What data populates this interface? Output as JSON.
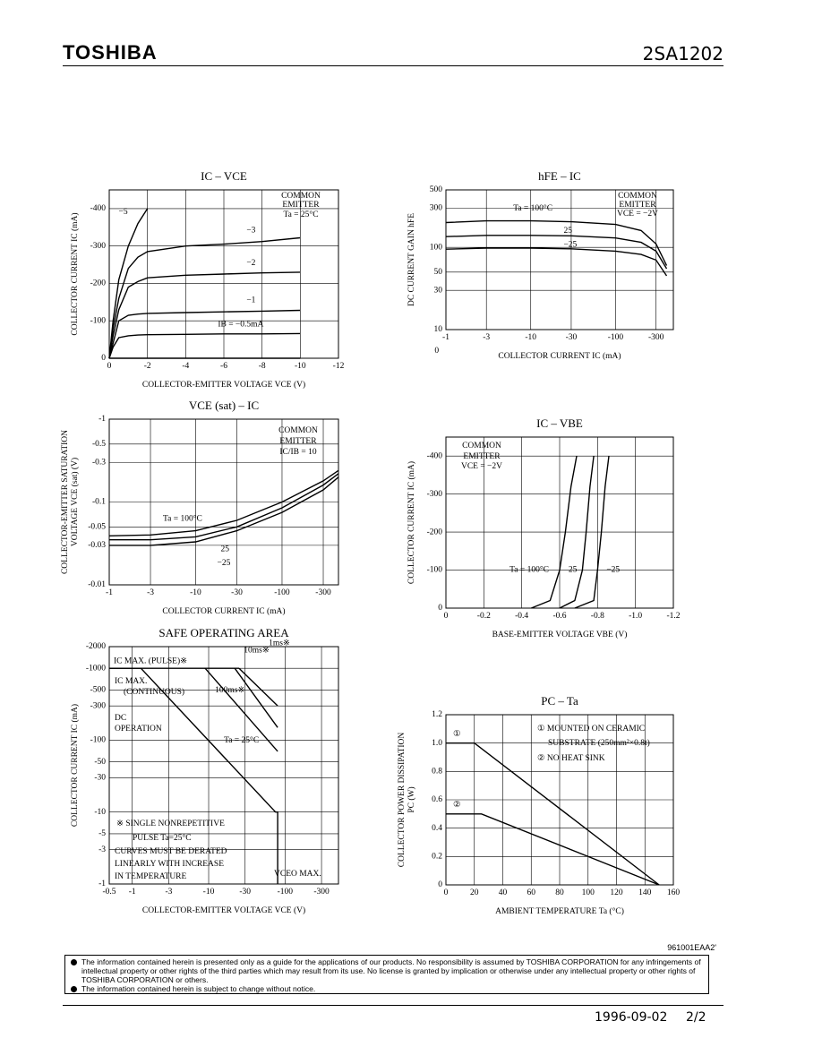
{
  "header": {
    "brand": "TOSHIBA",
    "part": "2SA1202"
  },
  "chart_data": [
    {
      "type": "line",
      "title": "IC – VCE",
      "xlabel": "COLLECTOR-EMITTER VOLTAGE VCE (V)",
      "ylabel": [
        "COLLECTOR CURRENT IC (mA)"
      ],
      "xscale": "linear",
      "yscale": "linear",
      "grid": true,
      "xlim": [
        0,
        -12
      ],
      "ylim": [
        0,
        -450
      ],
      "xticks": [
        0,
        -2,
        -4,
        -6,
        -8,
        -10,
        -12
      ],
      "yticks": [
        0,
        -100,
        -200,
        -300,
        -400
      ],
      "series": [
        {
          "name": "−5",
          "color": "#000",
          "x": [
            0,
            -0.2,
            -0.5,
            -1,
            -1.5,
            -2
          ],
          "values": [
            0,
            -100,
            -210,
            -300,
            -360,
            -400
          ]
        },
        {
          "name": "−3",
          "color": "#000",
          "x": [
            0,
            -0.2,
            -0.5,
            -1,
            -1.5,
            -2,
            -4,
            -6,
            -8,
            -10
          ],
          "values": [
            0,
            -80,
            -160,
            -240,
            -270,
            -285,
            -300,
            -305,
            -312,
            -322
          ]
        },
        {
          "name": "−2",
          "color": "#000",
          "x": [
            0,
            -0.2,
            -0.5,
            -1,
            -1.5,
            -2,
            -4,
            -6,
            -8,
            -10
          ],
          "values": [
            0,
            -60,
            -130,
            -190,
            -205,
            -215,
            -222,
            -225,
            -228,
            -230
          ]
        },
        {
          "name": "−1",
          "color": "#000",
          "x": [
            0,
            -0.2,
            -0.5,
            -1,
            -1.5,
            -2,
            -4,
            -6,
            -8,
            -10
          ],
          "values": [
            0,
            -40,
            -100,
            -115,
            -118,
            -120,
            -122,
            -124,
            -126,
            -128
          ]
        },
        {
          "name": "IB = −0.5mA",
          "color": "#000",
          "x": [
            0,
            -0.2,
            -0.5,
            -1,
            -1.5,
            -2,
            -4,
            -6,
            -8,
            -10
          ],
          "values": [
            0,
            -30,
            -55,
            -60,
            -62,
            -63,
            -64,
            -65,
            -65,
            -66
          ]
        },
        {
          "name": "0",
          "color": "#000",
          "x": [
            0,
            -10
          ],
          "values": [
            0,
            0
          ]
        }
      ],
      "annotations": [
        "COMMON",
        "EMITTER",
        "Ta = 25°C"
      ]
    },
    {
      "type": "line",
      "title": "hFE – IC",
      "xlabel": "COLLECTOR CURRENT IC (mA)",
      "ylabel": [
        "DC CURRENT GAIN hFE"
      ],
      "xscale": "log",
      "yscale": "log",
      "grid": true,
      "xlim": [
        -1,
        -480
      ],
      "ylim": [
        10,
        500
      ],
      "xticks": [
        -1,
        -3,
        -10,
        -30,
        -100,
        -300
      ],
      "yticks": [
        10,
        30,
        50,
        100,
        300,
        500
      ],
      "series": [
        {
          "name": "Ta = 100°C",
          "color": "#000",
          "x": [
            -1,
            -3,
            -10,
            -30,
            -100,
            -200,
            -300,
            -400
          ],
          "values": [
            200,
            210,
            210,
            205,
            190,
            160,
            110,
            60
          ]
        },
        {
          "name": "25",
          "color": "#000",
          "x": [
            -1,
            -3,
            -10,
            -30,
            -100,
            -200,
            -300,
            -400
          ],
          "values": [
            135,
            140,
            140,
            138,
            130,
            115,
            90,
            55
          ]
        },
        {
          "name": "−25",
          "color": "#000",
          "x": [
            -1,
            -3,
            -10,
            -30,
            -100,
            -200,
            -300,
            -400
          ],
          "values": [
            95,
            98,
            98,
            96,
            90,
            82,
            70,
            45
          ]
        }
      ],
      "annotations": [
        "COMMON",
        "EMITTER",
        "VCE = −2V"
      ]
    },
    {
      "type": "line",
      "title": "VCE (sat) – IC",
      "xlabel": "COLLECTOR CURRENT IC (mA)",
      "ylabel": [
        "COLLECTOR-EMITTER SATURATION",
        "VOLTAGE VCE (sat) (V)"
      ],
      "xscale": "log",
      "yscale": "log",
      "grid": true,
      "xlim": [
        -1,
        -450
      ],
      "ylim": [
        -0.01,
        -1
      ],
      "xticks": [
        -1,
        -3,
        -10,
        -30,
        -100,
        -300
      ],
      "yticks": [
        -0.01,
        -0.03,
        -0.05,
        -0.1,
        -0.3,
        -0.5,
        -1
      ],
      "series": [
        {
          "name": "Ta = 100°C",
          "color": "#000",
          "x": [
            -1,
            -3,
            -10,
            -30,
            -100,
            -300,
            -450
          ],
          "values": [
            -0.039,
            -0.04,
            -0.045,
            -0.06,
            -0.1,
            -0.18,
            -0.24
          ]
        },
        {
          "name": "25",
          "color": "#000",
          "x": [
            -1,
            -3,
            -10,
            -30,
            -100,
            -300,
            -450
          ],
          "values": [
            -0.035,
            -0.035,
            -0.038,
            -0.05,
            -0.085,
            -0.16,
            -0.22
          ]
        },
        {
          "name": "−25",
          "color": "#000",
          "x": [
            -1,
            -3,
            -10,
            -30,
            -100,
            -300,
            -450
          ],
          "values": [
            -0.03,
            -0.03,
            -0.033,
            -0.045,
            -0.075,
            -0.14,
            -0.2
          ]
        }
      ],
      "annotations": [
        "COMMON",
        "EMITTER",
        "IC/IB = 10"
      ]
    },
    {
      "type": "line",
      "title": "IC – VBE",
      "xlabel": "BASE-EMITTER VOLTAGE VBE (V)",
      "ylabel": [
        "COLLECTOR CURRENT IC (mA)"
      ],
      "xscale": "linear",
      "yscale": "linear",
      "grid": true,
      "xlim": [
        0,
        -1.2
      ],
      "ylim": [
        0,
        -450
      ],
      "xticks": [
        0,
        -0.2,
        -0.4,
        -0.6,
        -0.8,
        {
          "value": -1,
          "label": "-1.0"
        },
        -1.2
      ],
      "yticks": [
        0,
        -100,
        -200,
        -300,
        -400
      ],
      "series": [
        {
          "name": "Ta = 100°C",
          "color": "#000",
          "x": [
            -0.45,
            -0.55,
            -0.6,
            -0.63,
            -0.66,
            -0.69
          ],
          "values": [
            0,
            -20,
            -100,
            -200,
            -320,
            -400
          ]
        },
        {
          "name": "25",
          "color": "#000",
          "x": [
            -0.6,
            -0.68,
            -0.72,
            -0.74,
            -0.76,
            -0.78
          ],
          "values": [
            0,
            -20,
            -100,
            -200,
            -320,
            -400
          ]
        },
        {
          "name": "−25",
          "color": "#000",
          "x": [
            -0.68,
            -0.78,
            -0.8,
            -0.82,
            -0.84,
            -0.86
          ],
          "values": [
            0,
            -20,
            -100,
            -200,
            -320,
            -400
          ]
        }
      ],
      "annotations": [
        "COMMON",
        "EMITTER",
        "VCE = −2V"
      ]
    },
    {
      "type": "line",
      "title": "SAFE OPERATING AREA",
      "xlabel": "COLLECTOR-EMITTER VOLTAGE VCE (V)",
      "ylabel": [
        "COLLECTOR CURRENT IC (mA)"
      ],
      "xscale": "log",
      "yscale": "log",
      "grid": true,
      "xlim": [
        -0.5,
        -500
      ],
      "ylim": [
        -1,
        -2000
      ],
      "xticks": [
        -0.5,
        -1,
        -3,
        -10,
        -30,
        -100,
        -300
      ],
      "yticks": [
        -1,
        -3,
        -5,
        -10,
        -30,
        -50,
        -100,
        -300,
        -500,
        -1000,
        -2000
      ],
      "series": [
        {
          "name": "IC MAX. (PULSE)※",
          "color": "#000",
          "x": [
            -0.5,
            -25
          ],
          "values": [
            -1000,
            -1000
          ]
        },
        {
          "name": "10ms※",
          "color": "#000",
          "x": [
            -22,
            -80
          ],
          "values": [
            -1000,
            -150
          ]
        },
        {
          "name": "1ms※",
          "color": "#000",
          "x": [
            -25,
            -80
          ],
          "values": [
            -1000,
            -300
          ]
        },
        {
          "name": "100ms※",
          "color": "#000",
          "x": [
            -9,
            -80
          ],
          "values": [
            -1000,
            -70
          ]
        },
        {
          "name": "Ta = 25°C",
          "color": "#000",
          "x": [
            -0.5,
            -1.3,
            -75,
            -80,
            -80
          ],
          "values": [
            -1000,
            -1000,
            -10,
            -10,
            -1
          ]
        }
      ],
      "annotations": [
        "IC MAX.",
        "(CONTINUOUS)",
        "DC",
        "OPERATION",
        "※ SINGLE NONREPETITIVE",
        "PULSE Ta=25°C",
        "CURVES MUST BE DERATED",
        "LINEARLY WITH INCREASE",
        "IN TEMPERATURE",
        "VCEO MAX."
      ]
    },
    {
      "type": "line",
      "title": "PC – Ta",
      "xlabel": "AMBIENT TEMPERATURE Ta (°C)",
      "ylabel": [
        "COLLECTOR POWER DISSIPATION",
        "PC (W)"
      ],
      "xscale": "linear",
      "yscale": "linear",
      "grid": true,
      "xlim": [
        0,
        160
      ],
      "ylim": [
        0,
        1.2
      ],
      "xticks": [
        0,
        20,
        40,
        60,
        80,
        100,
        120,
        140,
        160
      ],
      "yticks": [
        0,
        0.2,
        0.4,
        0.6,
        0.8,
        {
          "value": 1,
          "label": "1.0"
        },
        1.2
      ],
      "series": [
        {
          "name": "①",
          "color": "#000",
          "x": [
            0,
            20,
            150
          ],
          "values": [
            1,
            1,
            0
          ]
        },
        {
          "name": "②",
          "color": "#000",
          "x": [
            0,
            25,
            150
          ],
          "values": [
            0.5,
            0.5,
            0
          ]
        }
      ],
      "annotations": [
        "① MOUNTED ON CERAMIC",
        "SUBSTRATE (250mm²×0.8t)",
        "② NO HEAT SINK"
      ]
    }
  ],
  "footer": {
    "code": "961001EAA2'",
    "notice": [
      "The information contained herein is presented only as a guide for the applications of our products. No responsibility is assumed by TOSHIBA CORPORATION for any infringements of intellectual property or other rights of the third parties which may result from its use. No license is granted by implication or otherwise under any intellectual property or other rights of TOSHIBA CORPORATION or others.",
      "The information contained herein is subject to change without notice."
    ],
    "date": "1996-09-02",
    "page": "2/2"
  }
}
